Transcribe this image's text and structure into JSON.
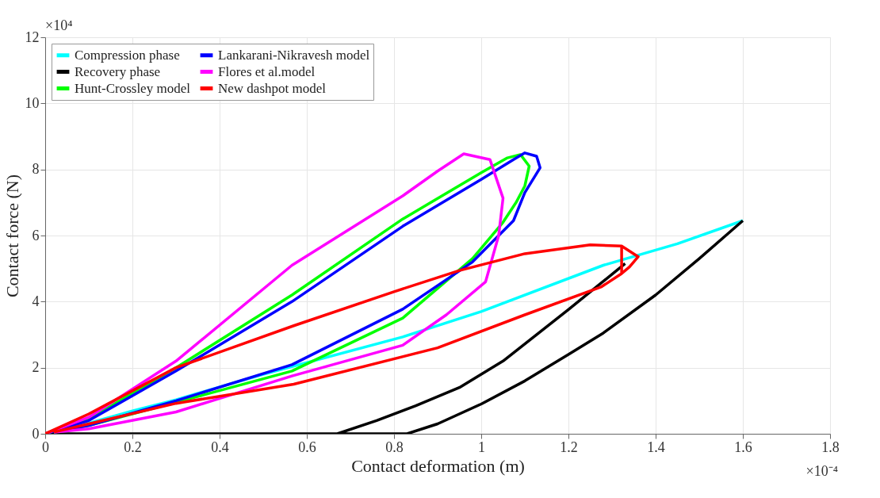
{
  "chart_data": {
    "type": "line",
    "xlabel": "Contact deformation (m)",
    "ylabel": "Contact force (N)",
    "annotations": [
      "×10⁴",
      "×10⁻⁴"
    ],
    "xlim": [
      0,
      1.8
    ],
    "xticks": [
      0,
      0.2,
      0.4,
      0.6,
      0.8,
      1,
      1.2,
      1.4,
      1.6,
      1.8
    ],
    "ylim": [
      0,
      12
    ],
    "yticks": [
      0,
      2,
      4,
      6,
      8,
      10,
      12
    ],
    "grid": true,
    "legend": "top left",
    "line_style": "solid",
    "marker": "none",
    "series": [
      {
        "name": "Compression phase",
        "color": "#00ffff",
        "x": [
          0,
          0.1,
          0.2,
          0.3,
          0.5,
          0.82,
          1.0,
          1.28,
          1.45,
          1.6
        ],
        "values": [
          0,
          0.32,
          0.69,
          1.03,
          1.8,
          2.93,
          3.7,
          5.1,
          5.75,
          6.45
        ]
      },
      {
        "name": "Recovery phase",
        "color": "#000000",
        "x": [
          1.33,
          1.2,
          1.05,
          0.95,
          0.85,
          0.76,
          0.67,
          0,
          0.83,
          0.9,
          1.0,
          1.1,
          1.2,
          1.28,
          1.4,
          1.5,
          1.6
        ],
        "values": [
          5.15,
          3.76,
          2.2,
          1.4,
          0.85,
          0.4,
          0,
          0,
          0,
          0.3,
          0.9,
          1.6,
          2.4,
          3.05,
          4.2,
          5.3,
          6.45
        ]
      },
      {
        "name": "Hunt-Crossley model",
        "color": "#00ff00",
        "x": [
          0,
          0.1,
          0.3,
          0.566,
          0.82,
          1.0,
          1.06,
          1.09,
          1.11,
          1.1,
          1.08,
          1.05,
          0.98,
          0.82,
          0.566,
          0.3,
          0.1,
          0.02
        ],
        "values": [
          0,
          0.45,
          2.0,
          4.2,
          6.5,
          7.9,
          8.35,
          8.45,
          8.1,
          7.5,
          7.0,
          6.4,
          5.3,
          3.5,
          1.9,
          0.95,
          0.25,
          0.05
        ]
      },
      {
        "name": "Lankarani-Nikravesh model",
        "color": "#0000ff",
        "x": [
          0,
          0.1,
          0.3,
          0.566,
          0.82,
          1.0,
          1.074,
          1.1,
          1.127,
          1.135,
          1.1,
          1.074,
          0.98,
          0.82,
          0.566,
          0.3,
          0.1,
          0.02
        ],
        "values": [
          0,
          0.4,
          1.9,
          4.0,
          6.28,
          7.7,
          8.3,
          8.5,
          8.4,
          8.05,
          7.3,
          6.45,
          5.2,
          3.77,
          2.09,
          1.0,
          0.25,
          0.05
        ]
      },
      {
        "name": "Flores et al.model",
        "color": "#ff00ff",
        "x": [
          0,
          0.1,
          0.3,
          0.566,
          0.82,
          0.9,
          0.96,
          1.02,
          1.05,
          1.04,
          1.01,
          0.92,
          0.82,
          0.566,
          0.3,
          0.1,
          0.02
        ],
        "values": [
          0,
          0.5,
          2.2,
          5.1,
          7.2,
          7.95,
          8.47,
          8.3,
          7.13,
          6.0,
          4.6,
          3.6,
          2.68,
          1.75,
          0.66,
          0.15,
          0.05
        ]
      },
      {
        "name": "New dashpot model",
        "color": "#ff0000",
        "x": [
          0,
          0.1,
          0.3,
          0.57,
          0.8,
          0.95,
          1.1,
          1.25,
          1.322,
          1.36,
          1.34,
          1.322,
          1.322,
          1.322,
          1.276,
          1.1,
          0.9,
          0.57,
          0.3,
          0.1,
          0.02
        ],
        "values": [
          0,
          0.6,
          2.0,
          3.27,
          4.3,
          4.94,
          5.45,
          5.72,
          5.68,
          5.36,
          5.05,
          4.85,
          5.68,
          4.85,
          4.45,
          3.6,
          2.6,
          1.5,
          0.92,
          0.3,
          0.05
        ]
      }
    ]
  }
}
